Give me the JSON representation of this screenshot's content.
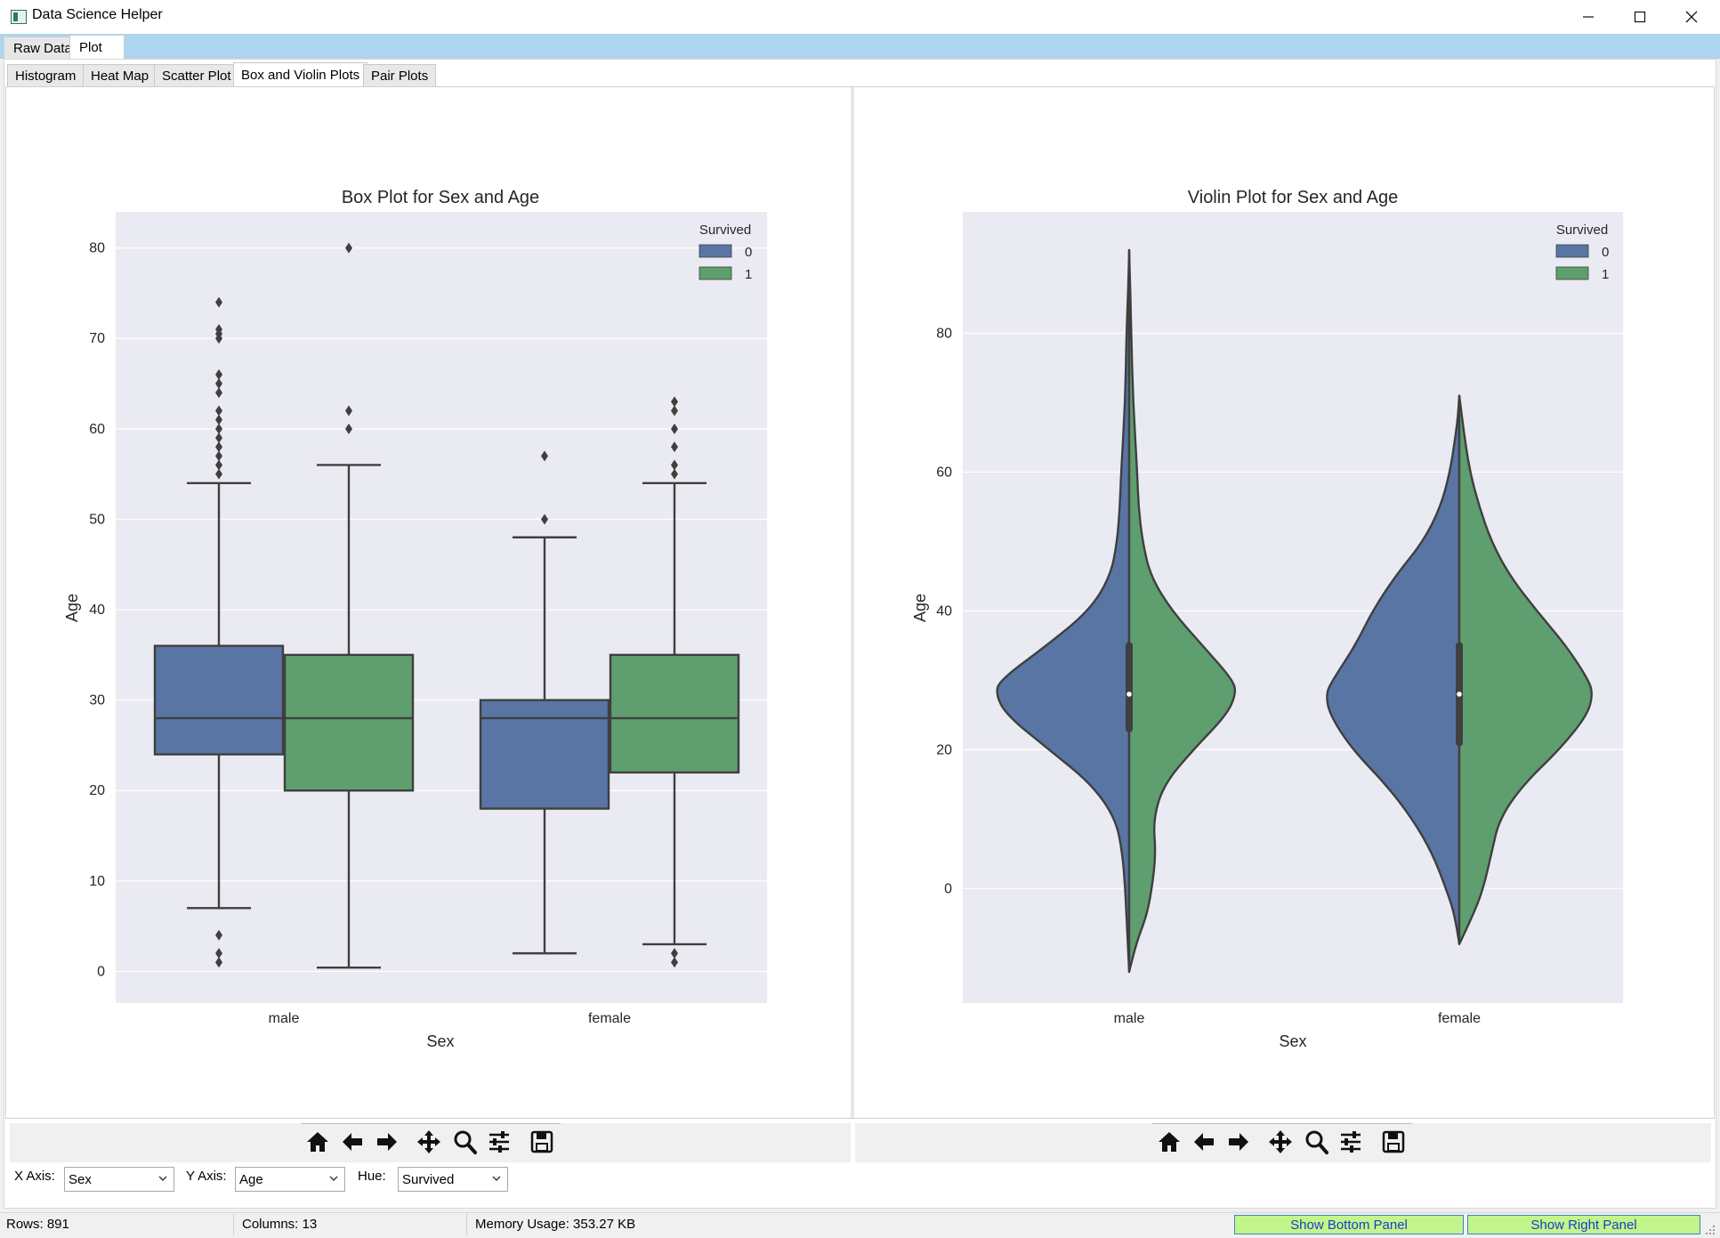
{
  "window": {
    "title": "Data Science Helper",
    "controls": [
      "minimize-icon",
      "maximize-icon",
      "close-icon"
    ]
  },
  "top_tabs": [
    {
      "label": "Raw Data",
      "active": false
    },
    {
      "label": "Plot",
      "active": true
    }
  ],
  "plot_tabs": [
    {
      "label": "Histogram",
      "active": false
    },
    {
      "label": "Heat Map",
      "active": false
    },
    {
      "label": "Scatter Plot",
      "active": false
    },
    {
      "label": "Box and Violin Plots",
      "active": true
    },
    {
      "label": "Pair Plots",
      "active": false
    }
  ],
  "colors": {
    "series_0": "#5875a4",
    "series_1": "#5f9e6e",
    "plot_bg": "#eaeaf2",
    "grid": "#ffffff",
    "line": "#3f3f3f",
    "tab_strip": "#aed5f0",
    "status_button_bg": "#c2f58b",
    "status_button_text": "#1a3ec8"
  },
  "chart_data": [
    {
      "type": "box",
      "title": "Box Plot for Sex and Age",
      "xlabel": "Sex",
      "ylabel": "Age",
      "categories": [
        "male",
        "female"
      ],
      "ylim": [
        -3.5,
        84
      ],
      "yticks": [
        0,
        10,
        20,
        30,
        40,
        50,
        60,
        70,
        80
      ],
      "grid": true,
      "legend": {
        "title": "Survived",
        "entries": [
          "0",
          "1"
        ],
        "position": "top-right"
      },
      "series": [
        {
          "name": "0",
          "boxes": [
            {
              "category": "male",
              "whislo": 7,
              "q1": 24,
              "med": 28,
              "q3": 36,
              "whishi": 54,
              "fliers": [
                1,
                2,
                4,
                55,
                56,
                57,
                58,
                59,
                60,
                61,
                62,
                64,
                65,
                66,
                70,
                70.5,
                71,
                74
              ]
            },
            {
              "category": "female",
              "whislo": 2,
              "q1": 18,
              "med": 28,
              "q3": 30,
              "whishi": 48,
              "fliers": [
                50,
                57
              ]
            }
          ]
        },
        {
          "name": "1",
          "boxes": [
            {
              "category": "male",
              "whislo": 0.42,
              "q1": 20,
              "med": 28,
              "q3": 35,
              "whishi": 56,
              "fliers": [
                60,
                62,
                80
              ]
            },
            {
              "category": "female",
              "whislo": 3,
              "q1": 22,
              "med": 28,
              "q3": 35,
              "whishi": 54,
              "fliers": [
                1,
                2,
                55,
                56,
                58,
                60,
                62,
                63
              ]
            }
          ]
        }
      ]
    },
    {
      "type": "violin",
      "title": "Violin Plot for Sex and Age",
      "xlabel": "Sex",
      "ylabel": "Age",
      "categories": [
        "male",
        "female"
      ],
      "ylim": [
        -16.5,
        97.5
      ],
      "yticks": [
        0,
        20,
        40,
        60,
        80
      ],
      "grid": true,
      "split": true,
      "legend": {
        "title": "Survived",
        "entries": [
          "0",
          "1"
        ],
        "position": "top-right"
      },
      "inner_box": [
        {
          "category": "male",
          "q1": 23,
          "med": 28,
          "q3": 35
        },
        {
          "category": "female",
          "q1": 21,
          "med": 28,
          "q3": 35
        }
      ],
      "density": {
        "male": {
          "y": [
            -12,
            -8,
            -4,
            0,
            5,
            10,
            15,
            20,
            25,
            28,
            30,
            35,
            40,
            45,
            50,
            55,
            60,
            70,
            80,
            85,
            88,
            92
          ],
          "series_0_width": [
            0.0,
            0.01,
            0.02,
            0.03,
            0.05,
            0.1,
            0.28,
            0.6,
            0.92,
            1.0,
            0.97,
            0.62,
            0.3,
            0.14,
            0.09,
            0.07,
            0.06,
            0.03,
            0.02,
            0.01,
            0.005,
            0.0
          ],
          "series_1_width": [
            0.0,
            0.05,
            0.13,
            0.17,
            0.2,
            0.18,
            0.26,
            0.48,
            0.73,
            0.8,
            0.78,
            0.55,
            0.32,
            0.16,
            0.1,
            0.07,
            0.06,
            0.03,
            0.015,
            0.01,
            0.005,
            0.0
          ]
        },
        "female": {
          "y": [
            -8,
            -4,
            0,
            5,
            10,
            15,
            20,
            25,
            28,
            30,
            35,
            40,
            45,
            50,
            55,
            60,
            65,
            68,
            71
          ],
          "series_0_width": [
            0.0,
            0.03,
            0.1,
            0.2,
            0.35,
            0.55,
            0.8,
            0.97,
            1.0,
            0.95,
            0.78,
            0.65,
            0.48,
            0.27,
            0.14,
            0.07,
            0.03,
            0.01,
            0.0
          ],
          "series_1_width": [
            0.0,
            0.1,
            0.18,
            0.24,
            0.3,
            0.48,
            0.75,
            0.96,
            1.0,
            0.97,
            0.8,
            0.58,
            0.38,
            0.24,
            0.15,
            0.08,
            0.04,
            0.02,
            0.0
          ]
        }
      }
    }
  ],
  "toolbars": [
    {
      "icons": [
        "home-icon",
        "back-arrow-icon",
        "forward-arrow-icon",
        "pan-icon",
        "zoom-icon",
        "configure-subplots-icon",
        "save-icon"
      ]
    },
    {
      "icons": [
        "home-icon",
        "back-arrow-icon",
        "forward-arrow-icon",
        "pan-icon",
        "zoom-icon",
        "configure-subplots-icon",
        "save-icon"
      ]
    }
  ],
  "controls": {
    "x_axis": {
      "label": "X Axis:",
      "value": "Sex"
    },
    "y_axis": {
      "label": "Y Axis:",
      "value": "Age"
    },
    "hue": {
      "label": "Hue:",
      "value": "Survived"
    }
  },
  "status": {
    "rows": "Rows: 891",
    "columns": "Columns: 13",
    "memory": "Memory Usage: 353.27 KB",
    "show_bottom": "Show Bottom Panel",
    "show_right": "Show Right Panel"
  }
}
